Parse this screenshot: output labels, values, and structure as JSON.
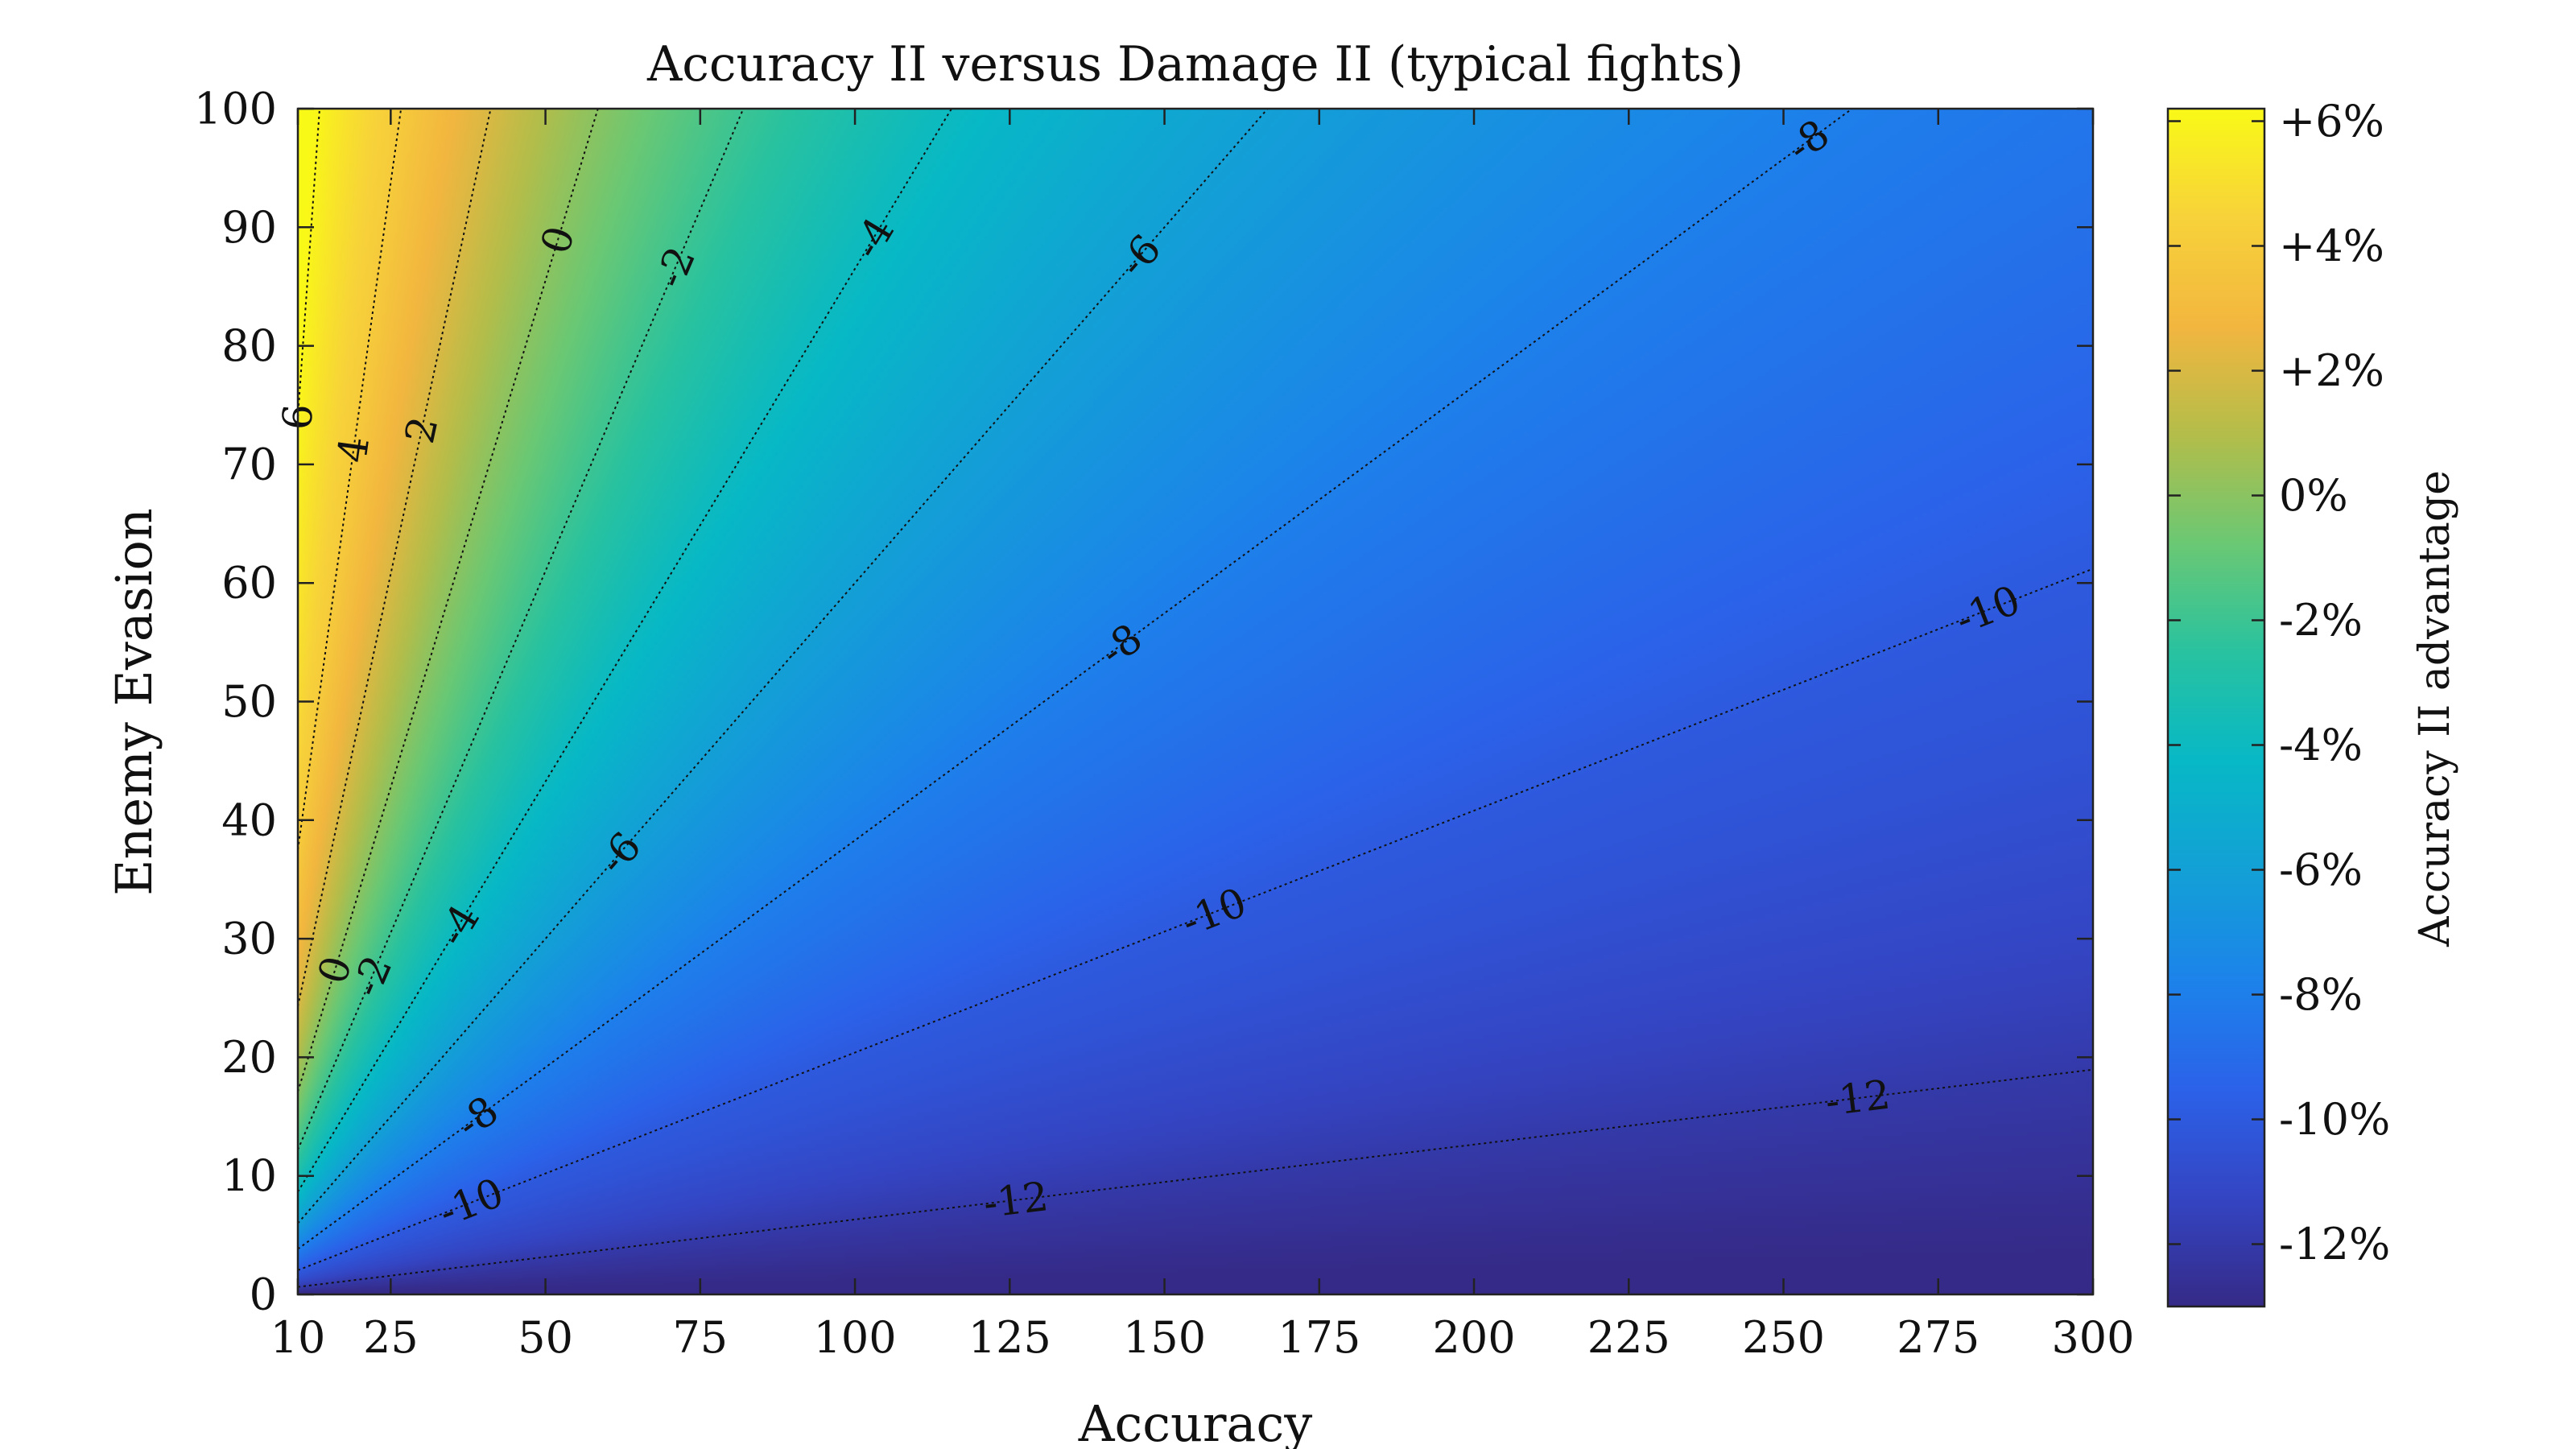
{
  "chart_data": {
    "type": "heatmap",
    "subtype": "filled-contour",
    "title": "Accuracy II versus Damage II (typical fights)",
    "xlabel": "Accuracy",
    "ylabel": "Enemy Evasion",
    "xlim": [
      10,
      300
    ],
    "ylim": [
      0,
      100
    ],
    "xticks": [
      10,
      25,
      50,
      75,
      100,
      125,
      150,
      175,
      200,
      225,
      250,
      275,
      300
    ],
    "xtick_labels": [
      "10",
      "25",
      "50",
      "75",
      "100",
      "125",
      "150",
      "175",
      "200",
      "225",
      "250",
      "275",
      "300"
    ],
    "yticks": [
      0,
      10,
      20,
      30,
      40,
      50,
      60,
      70,
      80,
      90,
      100
    ],
    "ytick_labels": [
      "0",
      "10",
      "20",
      "30",
      "40",
      "50",
      "60",
      "70",
      "80",
      "90",
      "100"
    ],
    "grid": false,
    "colorbar": {
      "label": "Accuracy II advantage",
      "range": [
        -13,
        6.2
      ],
      "ticks": [
        6,
        4,
        2,
        0,
        -2,
        -4,
        -6,
        -8,
        -10,
        -12
      ],
      "tick_labels": [
        "+6%",
        "+4%",
        "+2%",
        "0%",
        "-2%",
        "-4%",
        "-6%",
        "-8%",
        "-10%",
        "-12%"
      ],
      "colormap": "parula",
      "colors": [
        "#352a87",
        "#3445c3",
        "#2b62e9",
        "#1c83ea",
        "#13a0d6",
        "#07b8c6",
        "#28c2a0",
        "#6ac874",
        "#b3bd4a",
        "#f2b63f",
        "#f7d23a",
        "#f9f917"
      ]
    },
    "contour_levels": [
      6,
      4,
      2,
      0,
      -2,
      -4,
      -6,
      -8,
      -10,
      -12
    ],
    "contour_lines": [
      {
        "level": -12,
        "slope": 0.0632,
        "labels": [
          {
            "text": "-12",
            "x": 126
          },
          {
            "text": "-12",
            "x": 262
          }
        ]
      },
      {
        "level": -10,
        "slope": 0.204,
        "labels": [
          {
            "text": "-10",
            "x": 38
          },
          {
            "text": "-10",
            "x": 158
          },
          {
            "text": "-10",
            "x": 283
          }
        ]
      },
      {
        "level": -8,
        "slope": 0.383,
        "labels": [
          {
            "text": "-8",
            "x": 39
          },
          {
            "text": "-8",
            "x": 143
          },
          {
            "text": "-8",
            "x": 254
          }
        ]
      },
      {
        "level": -6,
        "slope": 0.6,
        "labels": [
          {
            "text": "-6",
            "x": 62
          },
          {
            "text": "-6",
            "x": 146
          }
        ]
      },
      {
        "level": -4,
        "slope": 0.865,
        "labels": [
          {
            "text": "-4",
            "x": 36
          },
          {
            "text": "-4",
            "x": 103
          }
        ]
      },
      {
        "level": -2,
        "slope": 1.22,
        "labels": [
          {
            "text": "-2",
            "x": 22
          },
          {
            "text": "-2",
            "x": 71
          }
        ]
      },
      {
        "level": 0,
        "slope": 1.71,
        "labels": [
          {
            "text": "0",
            "x": 16
          },
          {
            "text": "0",
            "x": 52
          }
        ]
      },
      {
        "level": 2,
        "slope": 2.43,
        "labels": [
          {
            "text": "2",
            "x": 30
          }
        ]
      },
      {
        "level": 4,
        "slope": 3.75,
        "labels": [
          {
            "text": "4",
            "x": 19
          }
        ]
      },
      {
        "level": 6,
        "slope": 7.4,
        "labels": [
          {
            "text": "6",
            "x": 10
          }
        ]
      }
    ]
  }
}
